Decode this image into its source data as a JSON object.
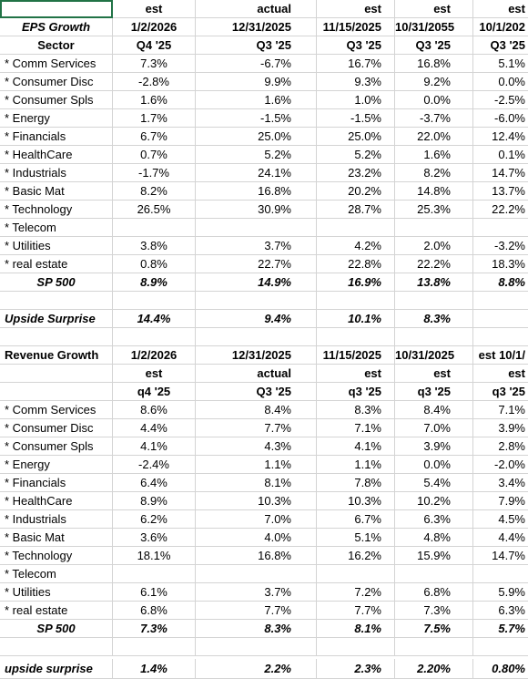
{
  "eps": {
    "rows": [
      [
        "",
        "est",
        "actual",
        "est",
        "est",
        "est"
      ],
      [
        "EPS Growth",
        "1/2/2026",
        "12/31/2025",
        "11/15/2025",
        "10/31/2055",
        "10/1/202"
      ],
      [
        "Sector",
        "Q4 '25",
        "Q3 '25",
        "Q3 '25",
        "Q3 '25",
        "Q3 '25"
      ],
      [
        " * Comm Services",
        "7.3%",
        "-6.7%",
        "16.7%",
        "16.8%",
        "5.1%"
      ],
      [
        "* Consumer Disc",
        "-2.8%",
        "9.9%",
        "9.3%",
        "9.2%",
        "0.0%"
      ],
      [
        "* Consumer Spls",
        "1.6%",
        "1.6%",
        "1.0%",
        "0.0%",
        "-2.5%"
      ],
      [
        "* Energy",
        "1.7%",
        "-1.5%",
        "-1.5%",
        "-3.7%",
        "-6.0%"
      ],
      [
        "* Financials",
        "6.7%",
        "25.0%",
        "25.0%",
        "22.0%",
        "12.4%"
      ],
      [
        "* HealthCare",
        "0.7%",
        "5.2%",
        "5.2%",
        "1.6%",
        "0.1%"
      ],
      [
        "* Industrials",
        "-1.7%",
        "24.1%",
        "23.2%",
        "8.2%",
        "14.7%"
      ],
      [
        "* Basic Mat",
        "8.2%",
        "16.8%",
        "20.2%",
        "14.8%",
        "13.7%"
      ],
      [
        "* Technology",
        "26.5%",
        "30.9%",
        "28.7%",
        "25.3%",
        "22.2%"
      ],
      [
        "* Telecom",
        "",
        "",
        "",
        "",
        ""
      ],
      [
        "* Utilities",
        "3.8%",
        "3.7%",
        "4.2%",
        "2.0%",
        "-3.2%"
      ],
      [
        "* real estate",
        "0.8%",
        "22.7%",
        "22.8%",
        "22.2%",
        "18.3%"
      ],
      [
        "SP 500",
        "8.9%",
        "14.9%",
        "16.9%",
        "13.8%",
        "8.8%"
      ],
      [
        "",
        "",
        "",
        "",
        "",
        ""
      ],
      [
        "Upside Surprise",
        "14.4%",
        "9.4%",
        "10.1%",
        "8.3%",
        ""
      ],
      [
        "",
        "",
        "",
        "",
        "",
        ""
      ]
    ]
  },
  "revenue": {
    "rows": [
      [
        "Revenue Growth",
        "1/2/2026",
        "12/31/2025",
        "11/15/2025",
        "10/31/2025",
        "est 10/1/"
      ],
      [
        "",
        "est",
        "actual",
        "est",
        "est",
        "est"
      ],
      [
        "",
        "q4 '25",
        "Q3 '25",
        "q3 '25",
        "q3 '25",
        "q3 '25"
      ],
      [
        " * Comm Services",
        "8.6%",
        "8.4%",
        "8.3%",
        "8.4%",
        "7.1%"
      ],
      [
        "* Consumer Disc",
        "4.4%",
        "7.7%",
        "7.1%",
        "7.0%",
        "3.9%"
      ],
      [
        "* Consumer Spls",
        "4.1%",
        "4.3%",
        "4.1%",
        "3.9%",
        "2.8%"
      ],
      [
        "* Energy",
        "-2.4%",
        "1.1%",
        "1.1%",
        "0.0%",
        "-2.0%"
      ],
      [
        "* Financials",
        "6.4%",
        "8.1%",
        "7.8%",
        "5.4%",
        "3.4%"
      ],
      [
        "* HealthCare",
        "8.9%",
        "10.3%",
        "10.3%",
        "10.2%",
        "7.9%"
      ],
      [
        "* Industrials",
        "6.2%",
        "7.0%",
        "6.7%",
        "6.3%",
        "4.5%"
      ],
      [
        "* Basic Mat",
        "3.6%",
        "4.0%",
        "5.1%",
        "4.8%",
        "4.4%"
      ],
      [
        "* Technology",
        "18.1%",
        "16.8%",
        "16.2%",
        "15.9%",
        "14.7%"
      ],
      [
        "* Telecom",
        "",
        "",
        "",
        "",
        ""
      ],
      [
        "* Utilities",
        "6.1%",
        "3.7%",
        "7.2%",
        "6.8%",
        "5.9%"
      ],
      [
        "* real estate",
        "6.8%",
        "7.7%",
        "7.7%",
        "7.3%",
        "6.3%"
      ],
      [
        "SP 500",
        "7.3%",
        "8.3%",
        "8.1%",
        "7.5%",
        "5.7%"
      ],
      [
        "",
        "",
        "",
        "",
        "",
        ""
      ],
      [
        "upside surprise",
        "1.4%",
        "2.2%",
        "2.3%",
        "2.20%",
        "0.80%"
      ]
    ]
  }
}
